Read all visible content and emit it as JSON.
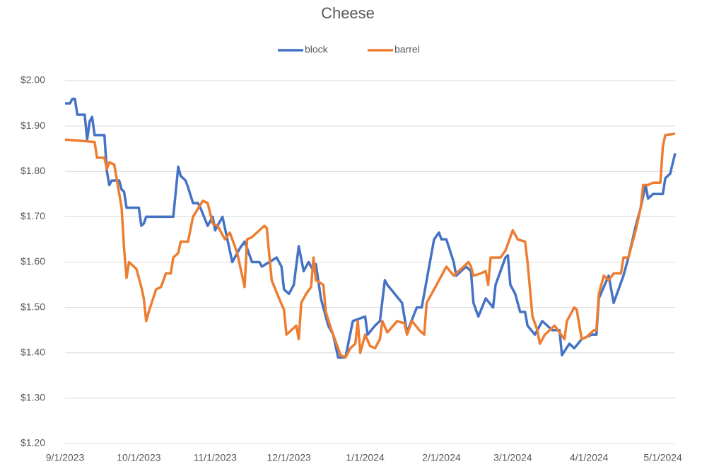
{
  "chart_data": {
    "type": "line",
    "title": "Cheese",
    "legend": "top",
    "grid": true,
    "xlim": [
      "9/1/2023",
      "5/6/2024"
    ],
    "xticks": [
      "9/1/2023",
      "10/1/2023",
      "11/1/2023",
      "12/1/2023",
      "1/1/2024",
      "2/1/2024",
      "3/1/2024",
      "4/1/2024",
      "5/1/2024"
    ],
    "ylim": [
      1.2,
      2.0
    ],
    "yticks": [
      {
        "value": 1.2,
        "label": "$1.20"
      },
      {
        "value": 1.3,
        "label": "$1.30"
      },
      {
        "value": 1.4,
        "label": "$1.40"
      },
      {
        "value": 1.5,
        "label": "$1.50"
      },
      {
        "value": 1.6,
        "label": "$1.60"
      },
      {
        "value": 1.7,
        "label": "$1.70"
      },
      {
        "value": 1.8,
        "label": "$1.80"
      },
      {
        "value": 1.9,
        "label": "$1.90"
      },
      {
        "value": 2.0,
        "label": "$2.00"
      }
    ],
    "series": [
      {
        "name": "block",
        "color": "#4472c4",
        "x": [
          "9/1/2023",
          "9/3/2023",
          "9/4/2023",
          "9/5/2023",
          "9/6/2023",
          "9/9/2023",
          "9/10/2023",
          "9/11/2023",
          "9/12/2023",
          "9/13/2023",
          "9/17/2023",
          "9/18/2023",
          "9/19/2023",
          "9/20/2023",
          "9/23/2023",
          "9/24/2023",
          "9/25/2023",
          "9/26/2023",
          "10/1/2023",
          "10/2/2023",
          "10/3/2023",
          "10/4/2023",
          "10/15/2023",
          "10/17/2023",
          "10/18/2023",
          "10/20/2023",
          "10/21/2023",
          "10/23/2023",
          "10/25/2023",
          "10/26/2023",
          "10/29/2023",
          "10/31/2023",
          "11/1/2023",
          "11/4/2023",
          "11/8/2023",
          "11/11/2023",
          "11/13/2023",
          "11/16/2023",
          "11/19/2023",
          "11/20/2023",
          "11/26/2023",
          "11/28/2023",
          "11/29/2023",
          "12/1/2023",
          "12/3/2023",
          "12/5/2023",
          "12/7/2023",
          "12/9/2023",
          "12/11/2023",
          "12/12/2023",
          "12/14/2023",
          "12/17/2023",
          "12/19/2023",
          "12/21/2023",
          "12/24/2023",
          "12/27/2023",
          "1/1/2024",
          "1/2/2024",
          "1/5/2024",
          "1/7/2024",
          "1/9/2024",
          "1/10/2024",
          "1/16/2024",
          "1/18/2024",
          "1/22/2024",
          "1/24/2024",
          "1/26/2024",
          "1/29/2024",
          "1/31/2024",
          "2/1/2024",
          "2/3/2024",
          "2/6/2024",
          "2/7/2024",
          "2/11/2024",
          "2/13/2024",
          "2/14/2024",
          "2/16/2024",
          "2/19/2024",
          "2/22/2024",
          "2/23/2024",
          "2/27/2024",
          "2/28/2024",
          "2/29/2024",
          "3/2/2024",
          "3/4/2024",
          "3/6/2024",
          "3/7/2024",
          "3/10/2024",
          "3/13/2024",
          "3/17/2024",
          "3/20/2024",
          "3/21/2024",
          "3/24/2024",
          "3/26/2024",
          "3/29/2024",
          "4/2/2024",
          "4/4/2024",
          "4/5/2024",
          "4/9/2024",
          "4/11/2024",
          "4/13/2024",
          "4/15/2024",
          "4/17/2024",
          "4/20/2024",
          "4/22/2024",
          "4/24/2024",
          "4/25/2024",
          "4/27/2024",
          "5/1/2024",
          "5/2/2024",
          "5/4/2024",
          "5/6/2024"
        ],
        "values": [
          1.95,
          1.95,
          1.96,
          1.96,
          1.925,
          1.925,
          1.87,
          1.91,
          1.92,
          1.88,
          1.88,
          1.8,
          1.77,
          1.78,
          1.78,
          1.76,
          1.755,
          1.72,
          1.72,
          1.68,
          1.685,
          1.7,
          1.7,
          1.81,
          1.79,
          1.78,
          1.765,
          1.73,
          1.73,
          1.72,
          1.68,
          1.7,
          1.67,
          1.7,
          1.6,
          1.63,
          1.645,
          1.6,
          1.6,
          1.59,
          1.61,
          1.59,
          1.54,
          1.53,
          1.55,
          1.635,
          1.58,
          1.6,
          1.58,
          1.595,
          1.52,
          1.46,
          1.44,
          1.39,
          1.39,
          1.47,
          1.48,
          1.44,
          1.46,
          1.47,
          1.56,
          1.55,
          1.51,
          1.445,
          1.5,
          1.5,
          1.56,
          1.65,
          1.665,
          1.65,
          1.65,
          1.6,
          1.57,
          1.59,
          1.58,
          1.51,
          1.48,
          1.52,
          1.5,
          1.55,
          1.61,
          1.615,
          1.55,
          1.53,
          1.49,
          1.49,
          1.46,
          1.44,
          1.47,
          1.45,
          1.45,
          1.395,
          1.42,
          1.41,
          1.43,
          1.44,
          1.44,
          1.52,
          1.57,
          1.51,
          1.54,
          1.57,
          1.61,
          1.68,
          1.72,
          1.77,
          1.74,
          1.75,
          1.75,
          1.785,
          1.795,
          1.84
        ]
      },
      {
        "name": "barrel",
        "color": "#ed7d31",
        "x": [
          "9/1/2023",
          "9/13/2023",
          "9/14/2023",
          "9/17/2023",
          "9/18/2023",
          "9/19/2023",
          "9/21/2023",
          "9/24/2023",
          "9/25/2023",
          "9/26/2023",
          "9/27/2023",
          "9/30/2023",
          "10/2/2023",
          "10/3/2023",
          "10/4/2023",
          "10/5/2023",
          "10/8/2023",
          "10/10/2023",
          "10/12/2023",
          "10/14/2023",
          "10/15/2023",
          "10/17/2023",
          "10/18/2023",
          "10/21/2023",
          "10/23/2023",
          "10/27/2023",
          "10/29/2023",
          "10/31/2023",
          "11/2/2023",
          "11/5/2023",
          "11/7/2023",
          "11/10/2023",
          "11/13/2023",
          "11/14/2023",
          "11/16/2023",
          "11/19/2023",
          "11/21/2023",
          "11/22/2023",
          "11/24/2023",
          "11/27/2023",
          "11/29/2023",
          "11/30/2023",
          "12/4/2023",
          "12/5/2023",
          "12/6/2023",
          "12/8/2023",
          "12/10/2023",
          "12/11/2023",
          "12/12/2023",
          "12/15/2023",
          "12/16/2023",
          "12/18/2023",
          "12/21/2023",
          "12/22/2023",
          "12/24/2023",
          "12/26/2023",
          "12/28/2023",
          "12/29/2023",
          "12/30/2023",
          "1/1/2024",
          "1/3/2024",
          "1/5/2024",
          "1/7/2024",
          "1/8/2024",
          "1/10/2024",
          "1/14/2024",
          "1/17/2024",
          "1/18/2024",
          "1/20/2024",
          "1/23/2024",
          "1/25/2024",
          "1/26/2024",
          "1/30/2024",
          "2/3/2024",
          "2/6/2024",
          "2/8/2024",
          "2/12/2024",
          "2/13/2024",
          "2/14/2024",
          "2/17/2024",
          "2/19/2024",
          "2/20/2024",
          "2/21/2024",
          "2/25/2024",
          "2/27/2024",
          "3/1/2024",
          "3/3/2024",
          "3/6/2024",
          "3/7/2024",
          "3/9/2024",
          "3/11/2024",
          "3/12/2024",
          "3/14/2024",
          "3/18/2024",
          "3/22/2024",
          "3/23/2024",
          "3/26/2024",
          "3/27/2024",
          "3/29/2024",
          "3/31/2024",
          "4/3/2024",
          "4/4/2024",
          "4/5/2024",
          "4/7/2024",
          "4/9/2024",
          "4/11/2024",
          "4/14/2024",
          "4/15/2024",
          "4/17/2024",
          "4/20/2024",
          "4/22/2024",
          "4/23/2024",
          "4/25/2024",
          "4/27/2024",
          "4/30/2024",
          "5/1/2024",
          "5/2/2024",
          "5/6/2024"
        ],
        "values": [
          1.87,
          1.865,
          1.83,
          1.83,
          1.805,
          1.82,
          1.815,
          1.72,
          1.63,
          1.565,
          1.6,
          1.585,
          1.545,
          1.52,
          1.47,
          1.49,
          1.54,
          1.545,
          1.575,
          1.575,
          1.61,
          1.62,
          1.645,
          1.645,
          1.7,
          1.735,
          1.73,
          1.685,
          1.68,
          1.65,
          1.665,
          1.62,
          1.545,
          1.65,
          1.655,
          1.67,
          1.68,
          1.675,
          1.56,
          1.52,
          1.495,
          1.44,
          1.46,
          1.43,
          1.51,
          1.53,
          1.545,
          1.61,
          1.56,
          1.55,
          1.49,
          1.455,
          1.41,
          1.395,
          1.39,
          1.41,
          1.42,
          1.47,
          1.4,
          1.44,
          1.415,
          1.41,
          1.43,
          1.47,
          1.445,
          1.47,
          1.465,
          1.44,
          1.47,
          1.45,
          1.44,
          1.51,
          1.55,
          1.59,
          1.57,
          1.58,
          1.6,
          1.59,
          1.57,
          1.575,
          1.58,
          1.55,
          1.61,
          1.61,
          1.625,
          1.67,
          1.65,
          1.645,
          1.6,
          1.48,
          1.45,
          1.42,
          1.44,
          1.46,
          1.43,
          1.47,
          1.5,
          1.495,
          1.43,
          1.435,
          1.45,
          1.45,
          1.53,
          1.57,
          1.56,
          1.575,
          1.575,
          1.61,
          1.61,
          1.67,
          1.72,
          1.77,
          1.77,
          1.775,
          1.775,
          1.855,
          1.88,
          1.883
        ]
      }
    ]
  }
}
